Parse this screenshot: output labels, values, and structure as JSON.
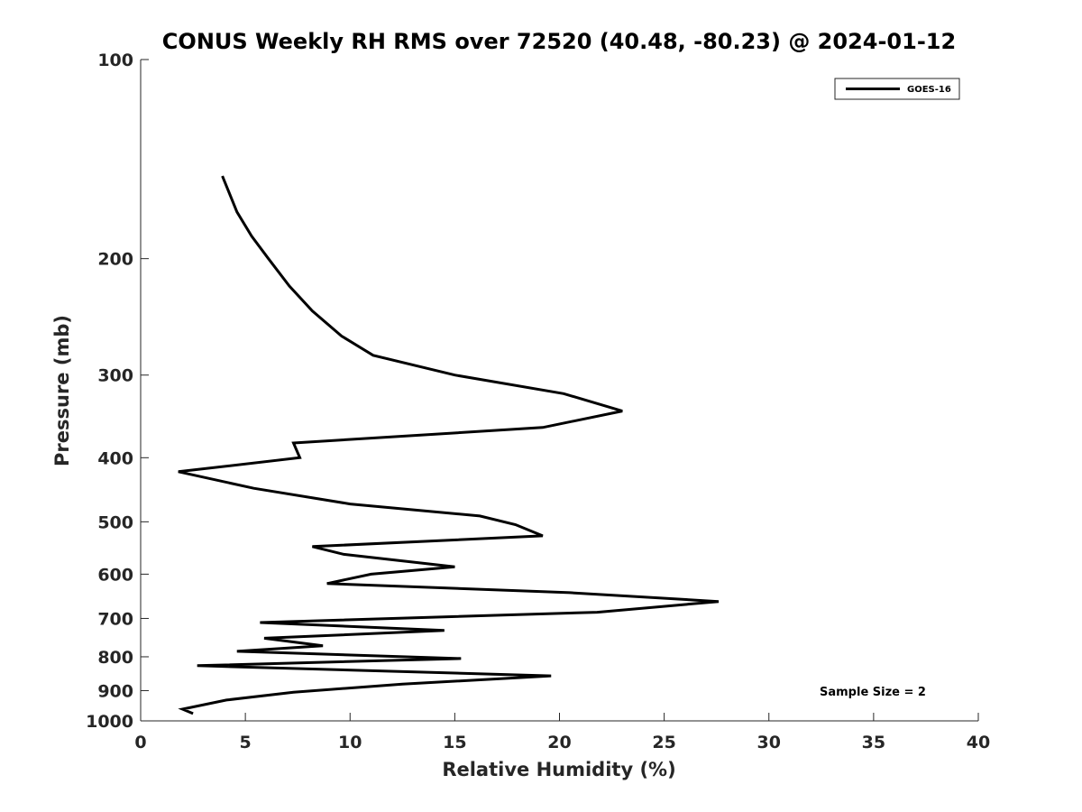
{
  "chart_data": {
    "type": "line",
    "title": "CONUS Weekly RH RMS over 72520 (40.48, -80.23) @ 2024-01-12",
    "xlabel": "Relative Humidity (%)",
    "ylabel": "Pressure (mb)",
    "xlim": [
      0,
      40
    ],
    "ylim": [
      100,
      1000
    ],
    "yscale": "log",
    "y_inverted": true,
    "x_ticks": [
      "0",
      "5",
      "10",
      "15",
      "20",
      "25",
      "30",
      "35",
      "40"
    ],
    "y_ticks": [
      "100",
      "200",
      "300",
      "400",
      "500",
      "600",
      "700",
      "800",
      "900",
      "1000"
    ],
    "grid": false,
    "legend_position": "top-right",
    "annotation": "Sample Size = 2",
    "series": [
      {
        "name": "GOES-16",
        "color": "#000000",
        "x": [
          3.9,
          4.6,
          5.3,
          6.1,
          7.1,
          8.2,
          9.6,
          11.1,
          15.0,
          20.2,
          23.0,
          19.2,
          7.3,
          7.6,
          1.8,
          5.4,
          10.0,
          16.2,
          17.9,
          19.2,
          8.2,
          9.7,
          15.0,
          11.0,
          8.9,
          20.5,
          27.6,
          21.8,
          5.7,
          14.5,
          5.9,
          8.7,
          4.6,
          15.3,
          2.7,
          19.6,
          12.5,
          7.3,
          4.1,
          2.0,
          2.5
        ],
        "y": [
          150,
          170,
          185,
          200,
          220,
          240,
          262,
          280,
          300,
          320,
          340,
          360,
          380,
          400,
          420,
          445,
          470,
          490,
          505,
          525,
          545,
          560,
          585,
          600,
          620,
          640,
          660,
          685,
          710,
          730,
          750,
          770,
          785,
          805,
          825,
          855,
          880,
          905,
          930,
          960,
          975
        ]
      }
    ]
  }
}
